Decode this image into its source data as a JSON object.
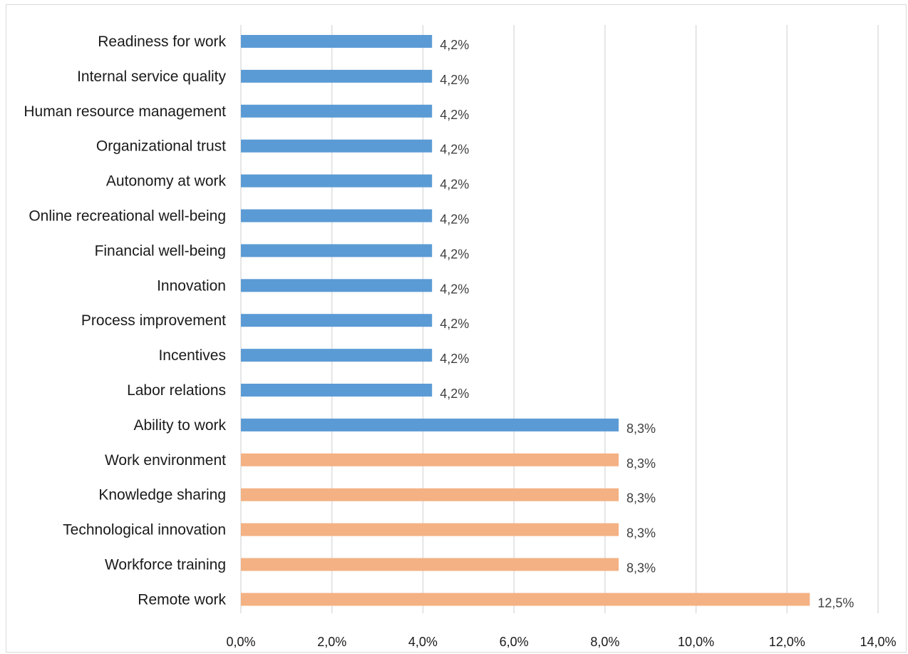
{
  "chart_data": {
    "type": "bar",
    "orientation": "horizontal",
    "title": "",
    "xlabel": "",
    "ylabel": "",
    "xlim": [
      0,
      14
    ],
    "grid": true,
    "legend": "none",
    "ticks": [
      "0,0%",
      "2,0%",
      "4,0%",
      "6,0%",
      "8,0%",
      "10,0%",
      "12,0%",
      "14,0%"
    ],
    "tick_values": [
      0,
      2,
      4,
      6,
      8,
      10,
      12,
      14
    ],
    "colors": {
      "blue": "#5b9bd5",
      "orange": "#f4b183"
    },
    "categories": [
      "Readiness for work",
      "Internal service quality",
      "Human resource management",
      "Organizational trust",
      "Autonomy at work",
      "Online recreational  well-being",
      "Financial well-being",
      "Innovation",
      "Process improvement",
      "Incentives",
      "Labor relations",
      "Ability to work",
      "Work environment",
      "Knowledge sharing",
      "Technological innovation",
      "Workforce training",
      "Remote work"
    ],
    "values": [
      4.2,
      4.2,
      4.2,
      4.2,
      4.2,
      4.2,
      4.2,
      4.2,
      4.2,
      4.2,
      4.2,
      8.3,
      8.3,
      8.3,
      8.3,
      8.3,
      12.5
    ],
    "value_labels": [
      "4,2%",
      "4,2%",
      "4,2%",
      "4,2%",
      "4,2%",
      "4,2%",
      "4,2%",
      "4,2%",
      "4,2%",
      "4,2%",
      "4,2%",
      "8,3%",
      "8,3%",
      "8,3%",
      "8,3%",
      "8,3%",
      "12,5%"
    ],
    "bar_colors": [
      "blue",
      "blue",
      "blue",
      "blue",
      "blue",
      "blue",
      "blue",
      "blue",
      "blue",
      "blue",
      "blue",
      "blue",
      "orange",
      "orange",
      "orange",
      "orange",
      "orange"
    ]
  }
}
